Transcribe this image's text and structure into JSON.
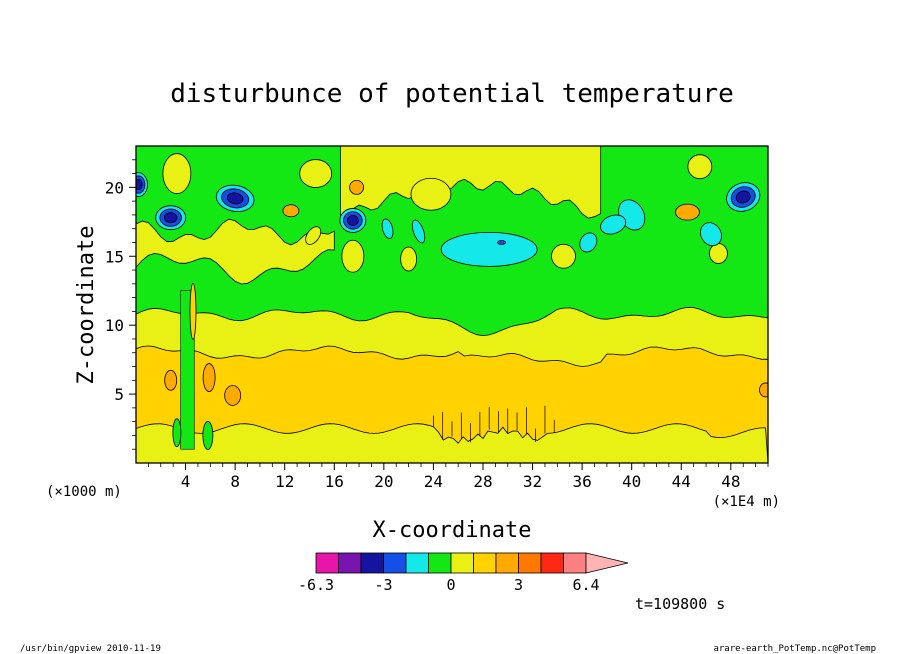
{
  "chart_data": {
    "type": "heatmap",
    "title": "disturbunce of potential temperature",
    "xlabel": "X-coordinate",
    "ylabel": "Z-coordinate",
    "x_unit_left": "(×1000 m)",
    "x_unit_right": "(×1E4 m)",
    "xlim": [
      0,
      51
    ],
    "ylim": [
      0,
      23
    ],
    "x_ticks": [
      4,
      8,
      12,
      16,
      20,
      24,
      28,
      32,
      36,
      40,
      44,
      48
    ],
    "y_ticks": [
      5,
      10,
      15,
      20
    ],
    "colorbar": {
      "levels": [
        -6.3,
        -5.3,
        -4.2,
        -3,
        -2,
        -1,
        0,
        1,
        2,
        3,
        4.2,
        5.3,
        6.4
      ],
      "colors": [
        "#e816a8",
        "#7a14b0",
        "#1414a0",
        "#1450e8",
        "#14e8e8",
        "#14e814",
        "#e8f014",
        "#ffd200",
        "#ffaa00",
        "#ff7800",
        "#ff2814",
        "#ff8080",
        "#ffb4b4"
      ],
      "labels": [
        "-6.3",
        "-3",
        "0",
        "3",
        "6.4"
      ],
      "label_values": [
        -6.3,
        -3,
        0,
        3,
        6.4
      ]
    },
    "regions_bottom_to_top": [
      {
        "z": [
          0,
          2.5
        ],
        "value_band": "0 to 1",
        "color": "#e8f014"
      },
      {
        "z": [
          2.5,
          8
        ],
        "value_band": "1 to 2",
        "color": "#ffd200"
      },
      {
        "z": [
          8,
          11
        ],
        "value_band": "0 to 1",
        "color": "#e8f014"
      },
      {
        "z": [
          11,
          23
        ],
        "value_band": "-1 to 0",
        "color": "#14e814"
      }
    ],
    "time_label": "t=109800 s"
  },
  "footer": {
    "left": "/usr/bin/gpview   2010-11-19",
    "right": "arare-earth_PotTemp.nc@PotTemp"
  }
}
